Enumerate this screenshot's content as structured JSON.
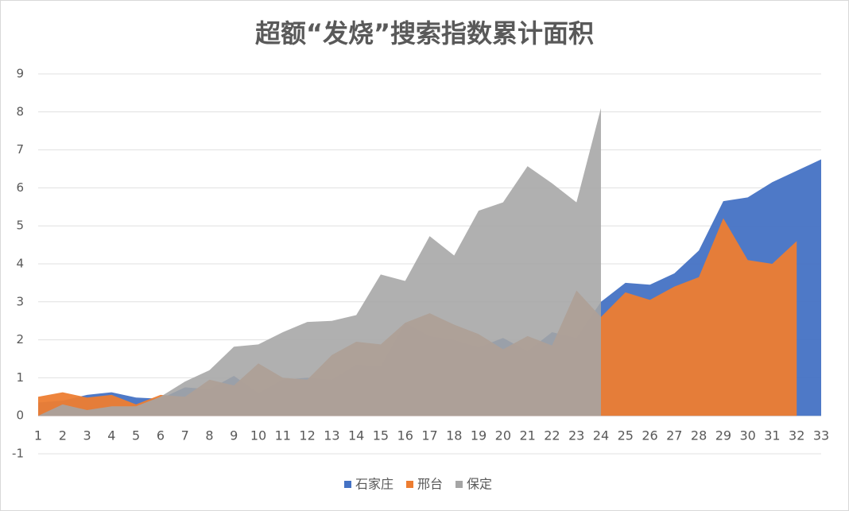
{
  "chart_data": {
    "type": "area",
    "title": "超额“发烧”搜索指数累计面积",
    "categories": [
      "1",
      "2",
      "3",
      "4",
      "5",
      "6",
      "7",
      "8",
      "9",
      "10",
      "11",
      "12",
      "13",
      "14",
      "15",
      "16",
      "17",
      "18",
      "19",
      "20",
      "21",
      "22",
      "23",
      "24",
      "25",
      "26",
      "27",
      "28",
      "29",
      "30",
      "31",
      "32",
      "33"
    ],
    "series": [
      {
        "name": "石家庄",
        "color": "#4472c4",
        "values": [
          0.35,
          0.4,
          0.55,
          0.62,
          0.48,
          0.45,
          0.75,
          0.7,
          1.05,
          0.6,
          0.95,
          1.0,
          0.95,
          1.35,
          1.3,
          2.45,
          2.1,
          2.0,
          1.8,
          2.05,
          1.7,
          2.2,
          2.05,
          3.0,
          3.5,
          3.45,
          3.75,
          4.35,
          5.65,
          5.75,
          6.15,
          6.45,
          6.75
        ]
      },
      {
        "name": "邢台",
        "color": "#ed7d31",
        "values": [
          0.5,
          0.62,
          0.48,
          0.55,
          0.3,
          0.55,
          0.5,
          0.95,
          0.8,
          1.38,
          1.0,
          0.95,
          1.6,
          1.95,
          1.88,
          2.45,
          2.7,
          2.4,
          2.15,
          1.75,
          2.1,
          1.85,
          3.3,
          2.6,
          3.25,
          3.05,
          3.4,
          3.65,
          5.2,
          4.1,
          4.0,
          4.6,
          null
        ]
      },
      {
        "name": "保定",
        "color": "#a5a5a5",
        "values": [
          0.0,
          0.3,
          0.15,
          0.25,
          0.25,
          0.5,
          0.9,
          1.2,
          1.82,
          1.88,
          2.2,
          2.47,
          2.5,
          2.65,
          3.72,
          3.55,
          4.73,
          4.22,
          5.4,
          5.62,
          6.57,
          6.12,
          5.62,
          8.1,
          null,
          null,
          null,
          null,
          null,
          null,
          null,
          null,
          null
        ]
      }
    ],
    "ylim": [
      -1,
      9
    ],
    "yticks": [
      -1,
      0,
      1,
      2,
      3,
      4,
      5,
      6,
      7,
      8,
      9
    ],
    "grid": true,
    "legend": "bottom"
  }
}
